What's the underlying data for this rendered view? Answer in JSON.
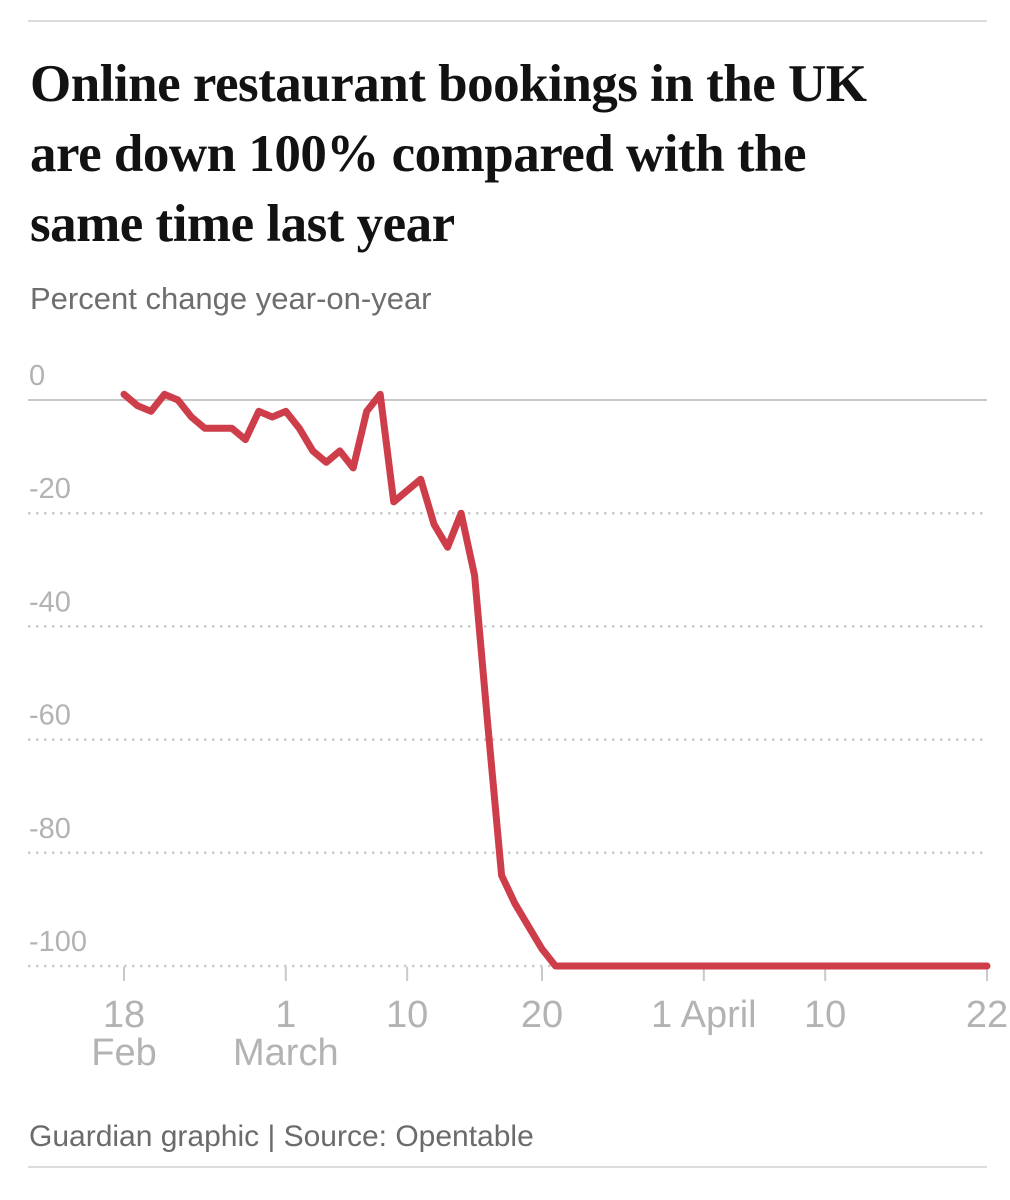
{
  "page": {
    "title_lines": [
      "Online restaurant bookings in the UK",
      "are down 100% compared with the",
      "same time last year"
    ],
    "subtitle": "Percent change year-on-year",
    "footer": "Guardian graphic | Source: Opentable"
  },
  "colors": {
    "line_red": "#ce3e4a",
    "title_text": "#121212",
    "subtitle_gray": "#6e6e6e",
    "axis_label_gray": "#b3b3b3",
    "grid_dotted_gray": "#cbcbcb",
    "grid_zero_gray": "#c8c8c8",
    "tick_gray": "#c9c9c9",
    "rule_gray": "#dcdcdc"
  },
  "chart_data": {
    "type": "line",
    "title": "Online restaurant bookings in the UK are down 100% compared with the same time last year",
    "subtitle": "Percent change year-on-year",
    "series_name": "Percent change year-on-year in UK online restaurant bookings",
    "x_unit": "daily from 18 Feb to 22 Apr",
    "ylim": [
      -105,
      5
    ],
    "grid": "horizontal dotted lines, solid line at zero, x tick marks below axis",
    "legend": "none",
    "values": [
      1,
      -1,
      -2,
      1,
      0,
      -3,
      -5,
      -5,
      -5,
      -7,
      -2,
      -3,
      -2,
      -5,
      -9,
      -11,
      -9,
      -12,
      -2,
      1,
      -18,
      -16,
      -14,
      -22,
      -26,
      -20,
      -31,
      -58,
      -84,
      -89,
      -93,
      -97,
      -100,
      -100,
      -100,
      -100,
      -100,
      -100,
      -100,
      -100,
      -100,
      -100,
      -100,
      -100,
      -100,
      -100,
      -100,
      -100,
      -100,
      -100,
      -100,
      -100,
      -100,
      -100,
      -100,
      -100,
      -100,
      -100,
      -100,
      -100,
      -100,
      -100,
      -100,
      -100,
      -100
    ],
    "yticks": [
      {
        "value": 0,
        "label": "0"
      },
      {
        "value": -20,
        "label": "-20"
      },
      {
        "value": -40,
        "label": "-40"
      },
      {
        "value": -60,
        "label": "-60"
      },
      {
        "value": -80,
        "label": "-80"
      },
      {
        "value": -100,
        "label": "-100"
      }
    ],
    "xticks": [
      {
        "index": 0,
        "label": "18",
        "sublabel": "Feb"
      },
      {
        "index": 12,
        "label": "1",
        "sublabel": "March"
      },
      {
        "index": 21,
        "label": "10",
        "sublabel": ""
      },
      {
        "index": 31,
        "label": "20",
        "sublabel": ""
      },
      {
        "index": 43,
        "label": "1 April",
        "sublabel": ""
      },
      {
        "index": 52,
        "label": "10",
        "sublabel": ""
      },
      {
        "index": 64,
        "label": "22",
        "sublabel": ""
      }
    ]
  }
}
